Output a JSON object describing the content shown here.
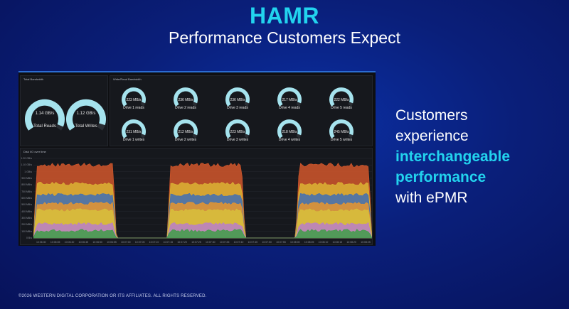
{
  "slide": {
    "title": "HAMR",
    "subtitle": "Performance Customers Expect",
    "right_text": {
      "line1": "Customers",
      "line2": "experience",
      "line3": "interchangeable",
      "line4": "performance",
      "line5": "with ePMR"
    },
    "footer": "©2026 WESTERN DIGITAL CORPORATION OR ITS AFFILIATES. ALL RIGHTS RESERVED.",
    "colors": {
      "title": "#22d3ee",
      "highlight": "#22d3ee",
      "gauge": "#a5e3ee"
    }
  },
  "dashboard": {
    "total_bandwidth": {
      "title": "Total Bandwidth",
      "gauges": [
        {
          "value": "1.14 GB/s",
          "label": "Total Reads",
          "fraction": 0.95
        },
        {
          "value": "1.12 GB/s",
          "label": "Total Writes",
          "fraction": 0.93
        }
      ]
    },
    "write_read_bandwidth": {
      "title": "Write/Read Bandwidth",
      "reads": [
        {
          "value": "223 MB/s",
          "label": "Drive 1 reads",
          "fraction": 0.93
        },
        {
          "value": "236 MB/s",
          "label": "Drive 2 reads",
          "fraction": 0.93
        },
        {
          "value": "236 MB/s",
          "label": "Drive 3 reads",
          "fraction": 0.93
        },
        {
          "value": "217 MB/s",
          "label": "Drive 4 reads",
          "fraction": 0.93
        },
        {
          "value": "222 MB/s",
          "label": "Drive 5 reads",
          "fraction": 0.93
        }
      ],
      "writes": [
        {
          "value": "231 MB/s",
          "label": "Drive 1 writes",
          "fraction": 0.93
        },
        {
          "value": "212 MB/s",
          "label": "Drive 2 writes",
          "fraction": 0.93
        },
        {
          "value": "223 MB/s",
          "label": "Drive 3 writes",
          "fraction": 0.93
        },
        {
          "value": "218 MB/s",
          "label": "Drive 4 writes",
          "fraction": 0.93
        },
        {
          "value": "245 MB/s",
          "label": "Drive 5 writes",
          "fraction": 0.93
        }
      ]
    },
    "disk_io": {
      "title": "Disk I/O over time",
      "y_ticks": [
        "1.20 GB/s",
        "1.10 GB/s",
        "1 GB/s",
        "900 MB/s",
        "800 MB/s",
        "700 MB/s",
        "600 MB/s",
        "500 MB/s",
        "400 MB/s",
        "300 MB/s",
        "200 MB/s",
        "100 MB/s",
        "0 B/s"
      ],
      "x_ticks": [
        "10:06:30",
        "10:06:35",
        "10:06:40",
        "10:06:45",
        "10:06:50",
        "10:06:55",
        "10:07:00",
        "10:07:05",
        "10:07:10",
        "10:07:15",
        "10:07:20",
        "10:07:25",
        "10:07:30",
        "10:07:35",
        "10:07:40",
        "10:07:45",
        "10:07:50",
        "10:07:55",
        "10:08:00",
        "10:08:05",
        "10:08:10",
        "10:08:15",
        "10:08:20",
        "10:08:25"
      ],
      "series_colors": [
        "#3f9e49",
        "#b97ec9",
        "#d8c03c",
        "#e8962e",
        "#3f6fb5",
        "#dcb434",
        "#d2572b"
      ],
      "active_windows": [
        [
          0,
          0.245
        ],
        [
          0.395,
          0.625
        ],
        [
          0.775,
          1.0
        ]
      ],
      "band_mb_s": [
        110,
        210,
        420,
        520,
        650,
        820,
        1100
      ]
    }
  }
}
